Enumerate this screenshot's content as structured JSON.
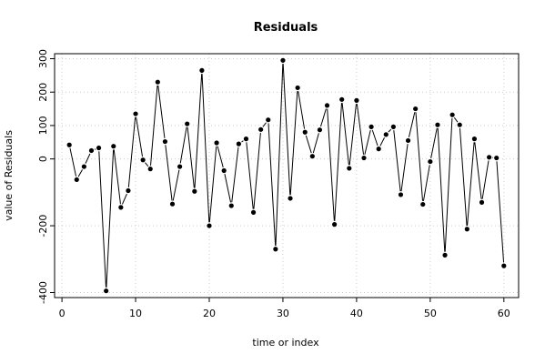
{
  "chart_data": {
    "type": "line",
    "title": "Residuals",
    "xlabel": "time or index",
    "ylabel": "value of Residuals",
    "xlim": [
      -1,
      62
    ],
    "ylim": [
      -415,
      315
    ],
    "xticks": [
      "0",
      "10",
      "20",
      "30",
      "40",
      "50",
      "60"
    ],
    "yticks": [
      "-400",
      "-200",
      "0",
      "100",
      "200",
      "300"
    ],
    "grid": true,
    "line_color": "#000000",
    "point_color": "#000000",
    "x": [
      1,
      2,
      3,
      4,
      5,
      6,
      7,
      8,
      9,
      10,
      11,
      12,
      13,
      14,
      15,
      16,
      17,
      18,
      19,
      20,
      21,
      22,
      23,
      24,
      25,
      26,
      27,
      28,
      29,
      30,
      31,
      32,
      33,
      34,
      35,
      36,
      37,
      38,
      39,
      40,
      41,
      42,
      43,
      44,
      45,
      46,
      47,
      48,
      49,
      50,
      51,
      52,
      53,
      54,
      55,
      56,
      57,
      58,
      59,
      60
    ],
    "values": [
      42,
      -62,
      -23,
      25,
      33,
      -395,
      38,
      -145,
      -95,
      135,
      -3,
      -30,
      230,
      52,
      -135,
      -23,
      105,
      -97,
      265,
      -200,
      48,
      -35,
      -140,
      45,
      60,
      -160,
      88,
      117,
      -270,
      295,
      -118,
      213,
      80,
      8,
      87,
      160,
      -196,
      178,
      -28,
      175,
      3,
      96,
      30,
      73,
      96,
      -107,
      55,
      150,
      -136,
      -8,
      102,
      -288,
      132,
      102,
      -210,
      60,
      -130,
      5,
      3,
      -320
    ]
  }
}
